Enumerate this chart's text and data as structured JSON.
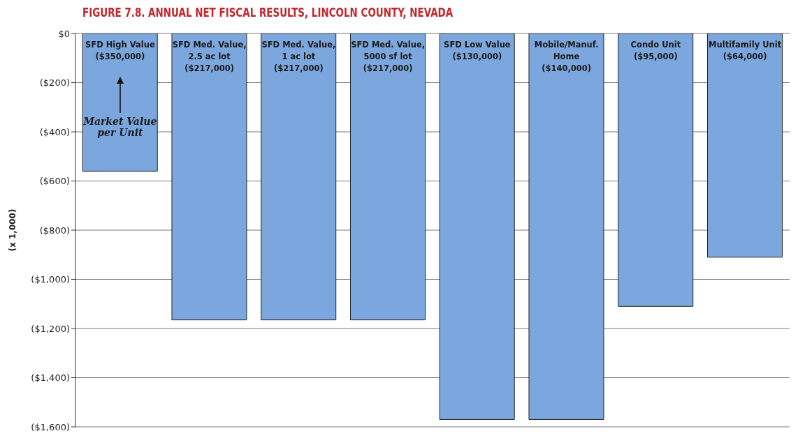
{
  "chart_data": {
    "type": "bar",
    "title": "FIGURE 7.8. ANNUAL NET FISCAL RESULTS, LINCOLN COUNTY, NEVADA",
    "ylabel": "(x 1,000)",
    "categories": [
      "SFD High Value\n($350,000)",
      "SFD Med. Value,\n2.5 ac lot\n($217,000)",
      "SFD Med. Value,\n1 ac lot\n($217,000)",
      "SFD Med. Value,\n5000 sf lot\n($217,000)",
      "SFD Low Value\n($130,000)",
      "Mobile/Manuf.\nHome\n($140,000)",
      "Condo Unit\n($95,000)",
      "Multifamily Unit\n($64,000)"
    ],
    "values": [
      -560,
      -1165,
      -1165,
      -1165,
      -1570,
      -1570,
      -1110,
      -910
    ],
    "color": "#7ca7de",
    "ylim": [
      -1600,
      0
    ],
    "yticks": [
      {
        "value": 0,
        "label": "$0"
      },
      {
        "value": -200,
        "label": "($200)"
      },
      {
        "value": -400,
        "label": "($400)"
      },
      {
        "value": -600,
        "label": "($600)"
      },
      {
        "value": -800,
        "label": "($800)"
      },
      {
        "value": -1000,
        "label": "($1,000)"
      },
      {
        "value": -1200,
        "label": "($1,200)"
      },
      {
        "value": -1400,
        "label": "($1,400)"
      },
      {
        "value": -1600,
        "label": "($1,600)"
      }
    ],
    "grid": "y",
    "annotations": [
      "Market Value\nper Unit"
    ]
  }
}
